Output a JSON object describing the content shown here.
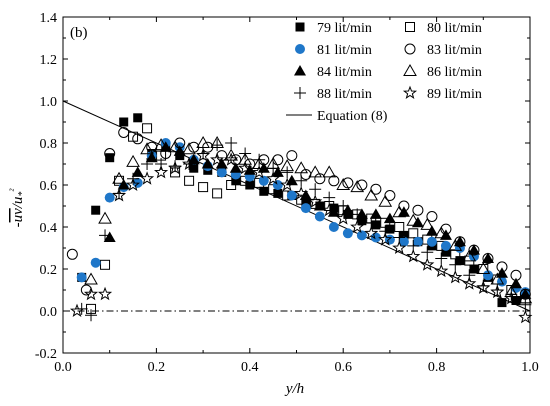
{
  "chart_data": {
    "type": "scatter",
    "panel_label": "(b)",
    "xlabel": "y/h",
    "ylabel": "-uv/u*²",
    "xlim": [
      0.0,
      1.0
    ],
    "ylim": [
      -0.2,
      1.4
    ],
    "x_ticks": [
      "0.0",
      "0.2",
      "0.4",
      "0.6",
      "0.8",
      "1.0"
    ],
    "y_ticks": [
      "-0.2",
      "0.0",
      "0.2",
      "0.4",
      "0.6",
      "0.8",
      "1.0",
      "1.2",
      "1.4"
    ],
    "grid": false,
    "legend_position": "top-right",
    "colors": {
      "black": "#000000",
      "blue": "#1f77c9"
    },
    "series": [
      {
        "name": "79 lit/min",
        "marker": "square-filled",
        "color": "#000000",
        "x": [
          0.04,
          0.07,
          0.1,
          0.13,
          0.16,
          0.19,
          0.22,
          0.25,
          0.28,
          0.31,
          0.34,
          0.37,
          0.4,
          0.43,
          0.46,
          0.49,
          0.52,
          0.55,
          0.58,
          0.61,
          0.64,
          0.67,
          0.7,
          0.73,
          0.76,
          0.79,
          0.82,
          0.85,
          0.88,
          0.91,
          0.94,
          0.97,
          0.99
        ],
        "y": [
          0.16,
          0.48,
          0.73,
          0.9,
          0.92,
          0.75,
          0.78,
          0.74,
          0.68,
          0.67,
          0.66,
          0.62,
          0.6,
          0.57,
          0.56,
          0.55,
          0.52,
          0.5,
          0.49,
          0.46,
          0.43,
          0.41,
          0.39,
          0.36,
          0.33,
          0.31,
          0.28,
          0.24,
          0.2,
          0.16,
          0.04,
          0.05,
          0.08
        ]
      },
      {
        "name": "80 lit/min",
        "marker": "square-open",
        "color": "#000000",
        "x": [
          0.06,
          0.09,
          0.12,
          0.15,
          0.18,
          0.21,
          0.24,
          0.27,
          0.3,
          0.33,
          0.36,
          0.39,
          0.42,
          0.45,
          0.48,
          0.51,
          0.54,
          0.57,
          0.6,
          0.63,
          0.66,
          0.69,
          0.72,
          0.75,
          0.78,
          0.81,
          0.84,
          0.87,
          0.9,
          0.93,
          0.96,
          0.99
        ],
        "y": [
          0.01,
          0.22,
          0.62,
          0.83,
          0.87,
          0.74,
          0.66,
          0.62,
          0.59,
          0.56,
          0.6,
          0.62,
          0.61,
          0.58,
          0.55,
          0.53,
          0.51,
          0.5,
          0.48,
          0.46,
          0.44,
          0.42,
          0.4,
          0.37,
          0.34,
          0.31,
          0.27,
          0.24,
          0.2,
          0.15,
          0.1,
          0.06
        ]
      },
      {
        "name": "81 lit/min",
        "marker": "circle-filled",
        "color": "#1f77c9",
        "x": [
          0.04,
          0.07,
          0.1,
          0.13,
          0.16,
          0.19,
          0.22,
          0.25,
          0.28,
          0.31,
          0.34,
          0.37,
          0.4,
          0.43,
          0.46,
          0.49,
          0.52,
          0.55,
          0.58,
          0.61,
          0.64,
          0.67,
          0.7,
          0.73,
          0.76,
          0.79,
          0.82,
          0.85,
          0.88,
          0.91,
          0.94,
          0.97,
          0.99
        ],
        "y": [
          0.16,
          0.23,
          0.54,
          0.59,
          0.61,
          0.74,
          0.8,
          0.78,
          0.72,
          0.69,
          0.66,
          0.65,
          0.64,
          0.62,
          0.6,
          0.55,
          0.49,
          0.45,
          0.4,
          0.37,
          0.36,
          0.35,
          0.34,
          0.33,
          0.33,
          0.33,
          0.31,
          0.3,
          0.26,
          0.17,
          0.14,
          0.11,
          0.09
        ]
      },
      {
        "name": "83 lit/min",
        "marker": "circle-open",
        "color": "#000000",
        "x": [
          0.02,
          0.05,
          0.1,
          0.13,
          0.16,
          0.19,
          0.22,
          0.25,
          0.28,
          0.31,
          0.34,
          0.37,
          0.4,
          0.43,
          0.46,
          0.49,
          0.52,
          0.55,
          0.58,
          0.61,
          0.64,
          0.67,
          0.7,
          0.73,
          0.76,
          0.79,
          0.82,
          0.85,
          0.88,
          0.91,
          0.94,
          0.97,
          0.99
        ],
        "y": [
          0.27,
          0.1,
          0.75,
          0.85,
          0.82,
          0.78,
          0.75,
          0.8,
          0.78,
          0.78,
          0.74,
          0.72,
          0.7,
          0.72,
          0.72,
          0.74,
          0.65,
          0.63,
          0.62,
          0.61,
          0.6,
          0.58,
          0.55,
          0.5,
          0.48,
          0.45,
          0.39,
          0.33,
          0.29,
          0.25,
          0.21,
          0.17,
          0.08
        ]
      },
      {
        "name": "84 lit/min",
        "marker": "triangle-filled",
        "color": "#000000",
        "x": [
          0.1,
          0.13,
          0.16,
          0.19,
          0.22,
          0.25,
          0.28,
          0.31,
          0.34,
          0.37,
          0.4,
          0.43,
          0.46,
          0.49,
          0.52,
          0.55,
          0.58,
          0.61,
          0.64,
          0.67,
          0.7,
          0.73,
          0.76,
          0.79,
          0.82,
          0.85,
          0.88,
          0.91,
          0.94,
          0.97,
          0.99
        ],
        "y": [
          0.35,
          0.6,
          0.66,
          0.73,
          0.78,
          0.76,
          0.72,
          0.7,
          0.7,
          0.68,
          0.67,
          0.68,
          0.66,
          0.62,
          0.55,
          0.5,
          0.47,
          0.48,
          0.46,
          0.46,
          0.44,
          0.47,
          0.42,
          0.38,
          0.36,
          0.33,
          0.29,
          0.25,
          0.18,
          0.13,
          0.08
        ]
      },
      {
        "name": "86 lit/min",
        "marker": "triangle-open",
        "color": "#000000",
        "x": [
          0.06,
          0.09,
          0.12,
          0.15,
          0.18,
          0.21,
          0.24,
          0.27,
          0.3,
          0.33,
          0.36,
          0.39,
          0.42,
          0.45,
          0.48,
          0.51,
          0.54,
          0.57,
          0.6,
          0.63,
          0.66,
          0.69,
          0.72,
          0.75,
          0.78,
          0.81,
          0.84,
          0.87,
          0.9,
          0.93,
          0.96,
          0.99
        ],
        "y": [
          0.15,
          0.44,
          0.63,
          0.71,
          0.77,
          0.79,
          0.78,
          0.77,
          0.8,
          0.8,
          0.74,
          0.72,
          0.7,
          0.7,
          0.69,
          0.68,
          0.66,
          0.66,
          0.6,
          0.59,
          0.55,
          0.52,
          0.47,
          0.43,
          0.41,
          0.37,
          0.31,
          0.26,
          0.2,
          0.15,
          0.09,
          0.06
        ]
      },
      {
        "name": "88 lit/min",
        "marker": "plus",
        "color": "#000000",
        "x": [
          0.04,
          0.06,
          0.09,
          0.12,
          0.15,
          0.18,
          0.21,
          0.24,
          0.27,
          0.3,
          0.33,
          0.36,
          0.39,
          0.42,
          0.45,
          0.48,
          0.51,
          0.54,
          0.57,
          0.6,
          0.63,
          0.66,
          0.69,
          0.72,
          0.75,
          0.78,
          0.81,
          0.84,
          0.87,
          0.9,
          0.93,
          0.96,
          0.99
        ],
        "y": [
          0.01,
          -0.02,
          0.36,
          0.56,
          0.63,
          0.7,
          0.7,
          0.69,
          0.7,
          0.75,
          0.79,
          0.8,
          0.75,
          0.72,
          0.68,
          0.66,
          0.62,
          0.58,
          0.54,
          0.5,
          0.46,
          0.42,
          0.38,
          0.35,
          0.31,
          0.28,
          0.25,
          0.22,
          0.17,
          0.12,
          0.1,
          0.08,
          0.03
        ]
      },
      {
        "name": "89 lit/min",
        "marker": "star-open",
        "color": "#000000",
        "x": [
          0.03,
          0.06,
          0.09,
          0.12,
          0.15,
          0.18,
          0.21,
          0.24,
          0.27,
          0.3,
          0.33,
          0.36,
          0.39,
          0.42,
          0.45,
          0.48,
          0.51,
          0.54,
          0.57,
          0.6,
          0.63,
          0.66,
          0.69,
          0.72,
          0.75,
          0.78,
          0.81,
          0.84,
          0.87,
          0.9,
          0.93,
          0.96,
          0.99
        ],
        "y": [
          0.0,
          0.08,
          0.08,
          0.55,
          0.6,
          0.63,
          0.66,
          0.68,
          0.7,
          0.74,
          0.72,
          0.72,
          0.68,
          0.66,
          0.63,
          0.6,
          0.56,
          0.52,
          0.48,
          0.44,
          0.4,
          0.37,
          0.34,
          0.3,
          0.26,
          0.22,
          0.19,
          0.16,
          0.13,
          0.11,
          0.09,
          0.06,
          -0.03
        ]
      }
    ],
    "lines": [
      {
        "name": "Equation (8)",
        "style": "solid",
        "x": [
          0.0,
          1.0
        ],
        "y": [
          1.0,
          0.0
        ]
      },
      {
        "style": "dash-dot",
        "x": [
          0.0,
          1.0
        ],
        "y": [
          0.0,
          0.0
        ]
      }
    ],
    "legend": {
      "rows": [
        [
          {
            "series": "79 lit/min"
          },
          {
            "series": "80 lit/min"
          }
        ],
        [
          {
            "series": "81 lit/min"
          },
          {
            "series": "83 lit/min"
          }
        ],
        [
          {
            "series": "84 lit/min"
          },
          {
            "series": "86 lit/min"
          }
        ],
        [
          {
            "series": "88 lit/min"
          },
          {
            "series": "89 lit/min"
          }
        ],
        [
          {
            "line": "Equation (8)"
          }
        ]
      ]
    }
  }
}
